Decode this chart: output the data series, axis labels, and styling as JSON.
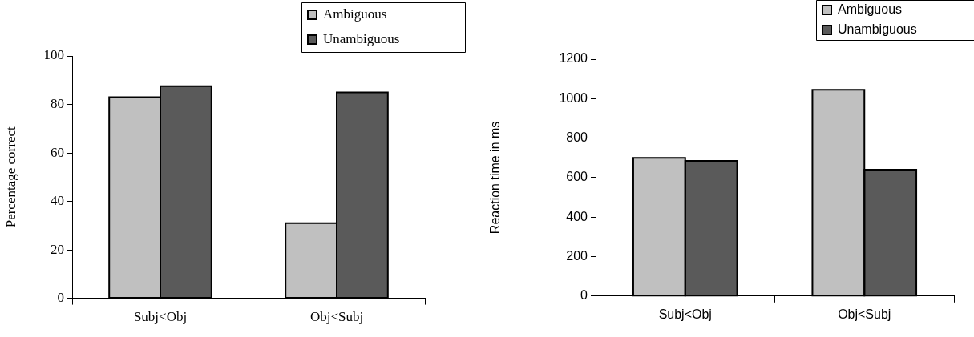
{
  "chart_data": [
    {
      "type": "bar",
      "ylabel": "Percentage correct",
      "categories": [
        "Subj<Obj",
        "Obj<Subj"
      ],
      "series": [
        {
          "name": "Ambiguous",
          "color": "#c0c0c0",
          "values": [
            83,
            31
          ]
        },
        {
          "name": "Unambiguous",
          "color": "#5a5a5a",
          "values": [
            87.5,
            85
          ]
        }
      ],
      "ylim": [
        0,
        100
      ],
      "yticks": [
        0,
        20,
        40,
        60,
        80,
        100
      ],
      "legend": "top right"
    },
    {
      "type": "bar",
      "ylabel": "Reaction time in ms",
      "categories": [
        "Subj<Obj",
        "Obj<Subj"
      ],
      "series": [
        {
          "name": "Ambiguous",
          "color": "#c0c0c0",
          "values": [
            700,
            1045
          ]
        },
        {
          "name": "Unambiguous",
          "color": "#5a5a5a",
          "values": [
            685,
            640
          ]
        }
      ],
      "ylim": [
        0,
        1200
      ],
      "yticks": [
        0,
        200,
        400,
        600,
        800,
        1000,
        1200
      ],
      "legend": "top right"
    }
  ]
}
